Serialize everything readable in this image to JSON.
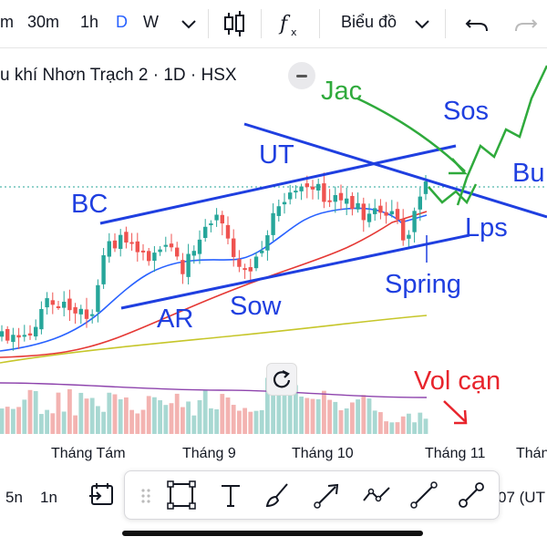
{
  "toolbar": {
    "partial_interval": "m",
    "intervals": [
      "30m",
      "1h",
      "D",
      "W"
    ],
    "active_interval": "D",
    "chart_type_label": "Biểu đồ"
  },
  "legend": {
    "title": "u khí Nhơn Trạch 2 · 1D · HSX"
  },
  "annotations": {
    "jac": "Jac",
    "sos": "Sos",
    "bu": "Bu",
    "ut": "UT",
    "bc": "BC",
    "lps": "Lps",
    "ar": "AR",
    "sow": "Sow",
    "spring": "Spring",
    "vol_can": "Vol cạn"
  },
  "time_axis": {
    "labels": [
      "Tháng Tám",
      "Tháng 9",
      "Tháng 10",
      "Tháng 11",
      "Thán"
    ]
  },
  "bottom_bar": {
    "intervals": [
      "5n",
      "1n"
    ],
    "right_text": "07 (UT"
  },
  "colors": {
    "up": "#26a69a",
    "down": "#ef5350",
    "accent": "#2962ff",
    "drawing_blue": "#1f3fe0",
    "drawing_green": "#2faa3c",
    "drawing_red": "#e8242c",
    "ma_fast": "#2962ff",
    "ma_mid": "#e53935",
    "ma_slow": "#c6c62a"
  }
}
